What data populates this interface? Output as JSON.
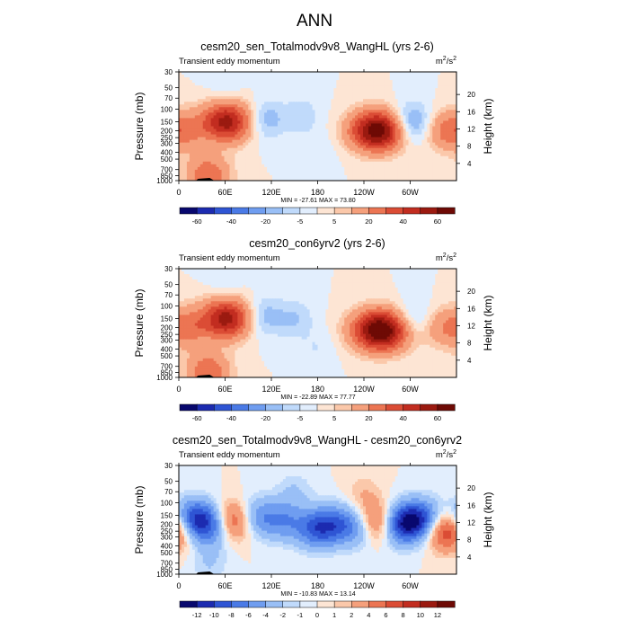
{
  "title": "ANN",
  "chart_data": [
    {
      "type": "heatmap",
      "title": "cesm20_sen_Totalmodv9v8_WangHL (yrs 2-6)",
      "subtitle": "Transient eddy momentum",
      "units": "m²/s²",
      "ylabel": "Pressure (mb)",
      "y2label": "Height (km)",
      "xticks": [
        "0",
        "60E",
        "120E",
        "180",
        "120W",
        "60W"
      ],
      "yticks": [
        "30",
        "50",
        "70",
        "100",
        "150",
        "200",
        "250",
        "300",
        "400",
        "500",
        "700",
        "850",
        "1000"
      ],
      "y2ticks": [
        "20",
        "16",
        "12",
        "8",
        "4"
      ],
      "stats": "MIN = -27.61  MAX =  73.80",
      "colorbar_labels": [
        "-60",
        "-40",
        "-20",
        "-5",
        "5",
        "20",
        "40",
        "60"
      ],
      "colorbar_levels": [
        -70,
        -60,
        -50,
        -40,
        -30,
        -20,
        -10,
        -5,
        0,
        5,
        10,
        20,
        30,
        40,
        50,
        60,
        70
      ],
      "features": [
        {
          "lon": 62,
          "p": 150,
          "v": 55
        },
        {
          "lon": 8,
          "p": 200,
          "v": 20
        },
        {
          "lon": 38,
          "p": 850,
          "v": 30
        },
        {
          "lon": 112,
          "p": 140,
          "v": -15
        },
        {
          "lon": 160,
          "p": 120,
          "v": -8
        },
        {
          "lon": 258,
          "p": 200,
          "v": 70
        },
        {
          "lon": 300,
          "p": 160,
          "v": -25
        },
        {
          "lon": 342,
          "p": 200,
          "v": 18
        },
        {
          "lon": 180,
          "p": 400,
          "v": -5
        },
        {
          "lon": 60,
          "p": 50,
          "v": -5
        }
      ]
    },
    {
      "type": "heatmap",
      "title": "cesm20_con6yrv2 (yrs 2-6)",
      "subtitle": "Transient eddy momentum",
      "units": "m²/s²",
      "ylabel": "Pressure (mb)",
      "y2label": "Height (km)",
      "xticks": [
        "0",
        "60E",
        "120E",
        "180",
        "120W",
        "60W"
      ],
      "yticks": [
        "30",
        "50",
        "70",
        "100",
        "150",
        "200",
        "250",
        "300",
        "400",
        "500",
        "700",
        "850",
        "1000"
      ],
      "y2ticks": [
        "20",
        "16",
        "12",
        "8",
        "4"
      ],
      "stats": "MIN = -22.89  MAX =  77.77",
      "colorbar_labels": [
        "-60",
        "-40",
        "-20",
        "-5",
        "5",
        "20",
        "40",
        "60"
      ],
      "colorbar_levels": [
        -70,
        -60,
        -50,
        -40,
        -30,
        -20,
        -10,
        -5,
        0,
        5,
        10,
        20,
        30,
        40,
        50,
        60,
        70
      ],
      "features": [
        {
          "lon": 62,
          "p": 150,
          "v": 55
        },
        {
          "lon": 12,
          "p": 200,
          "v": 22
        },
        {
          "lon": 38,
          "p": 850,
          "v": 30
        },
        {
          "lon": 108,
          "p": 140,
          "v": -15
        },
        {
          "lon": 150,
          "p": 150,
          "v": -10
        },
        {
          "lon": 262,
          "p": 220,
          "v": 75
        },
        {
          "lon": 302,
          "p": 160,
          "v": -15
        },
        {
          "lon": 340,
          "p": 200,
          "v": 15
        },
        {
          "lon": 180,
          "p": 400,
          "v": -5
        },
        {
          "lon": 60,
          "p": 50,
          "v": -5
        }
      ]
    },
    {
      "type": "heatmap",
      "title": "cesm20_sen_Totalmodv9v8_WangHL - cesm20_con6yrv2",
      "subtitle": "Transient eddy momentum",
      "units": "m²/s²",
      "ylabel": "Pressure (mb)",
      "y2label": "Height (km)",
      "xticks": [
        "0",
        "60E",
        "120E",
        "180",
        "120W",
        "60W"
      ],
      "yticks": [
        "30",
        "50",
        "70",
        "100",
        "150",
        "200",
        "250",
        "300",
        "400",
        "500",
        "700",
        "850",
        "1000"
      ],
      "y2ticks": [
        "20",
        "16",
        "12",
        "8",
        "4"
      ],
      "stats": "MIN = -10.83  MAX =  13.14",
      "colorbar_labels": [
        "-12",
        "-10",
        "-8",
        "-6",
        "-4",
        "-2",
        "-1",
        "0",
        "1",
        "2",
        "4",
        "6",
        "8",
        "10",
        "12"
      ],
      "colorbar_levels": [
        -14,
        -12,
        -10,
        -8,
        -6,
        -4,
        -2,
        -1,
        0,
        1,
        2,
        4,
        6,
        8,
        10,
        12,
        14
      ],
      "features": [
        {
          "lon": 20,
          "p": 170,
          "v": -10
        },
        {
          "lon": 44,
          "p": 220,
          "v": -6
        },
        {
          "lon": 72,
          "p": 180,
          "v": 8
        },
        {
          "lon": 100,
          "p": 160,
          "v": -6
        },
        {
          "lon": 135,
          "p": 180,
          "v": -5
        },
        {
          "lon": 178,
          "p": 230,
          "v": -8
        },
        {
          "lon": 206,
          "p": 200,
          "v": -6
        },
        {
          "lon": 238,
          "p": 220,
          "v": -7
        },
        {
          "lon": 258,
          "p": 200,
          "v": 12
        },
        {
          "lon": 280,
          "p": 210,
          "v": -9
        },
        {
          "lon": 300,
          "p": 180,
          "v": -8
        },
        {
          "lon": 322,
          "p": 170,
          "v": -6
        },
        {
          "lon": 348,
          "p": 240,
          "v": 10
        },
        {
          "lon": 150,
          "p": 70,
          "v": -2
        },
        {
          "lon": 240,
          "p": 80,
          "v": 2
        },
        {
          "lon": 40,
          "p": 700,
          "v": -2
        }
      ]
    }
  ]
}
